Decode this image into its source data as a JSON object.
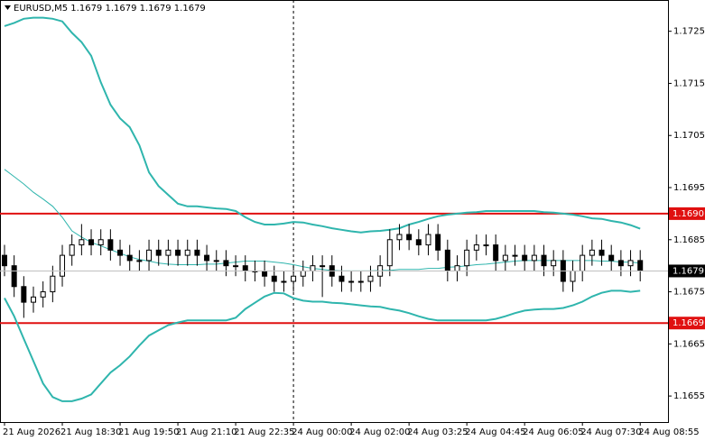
{
  "chart_data": {
    "type": "candlestick",
    "title": "EURUSD,M5  1.1679 1.1679 1.1679 1.1679",
    "categories": [
      "21 Aug 2026",
      null,
      null,
      null,
      null,
      null,
      "21 Aug 18:30",
      null,
      null,
      null,
      null,
      null,
      "21 Aug 19:50",
      null,
      null,
      null,
      null,
      null,
      "21 Aug 21:10",
      null,
      null,
      null,
      null,
      null,
      "21 Aug 22:35",
      null,
      null,
      null,
      null,
      null,
      "24 Aug 00:00",
      null,
      null,
      null,
      null,
      null,
      "24 Aug 02:00",
      null,
      null,
      null,
      null,
      null,
      "24 Aug 03:25",
      null,
      null,
      null,
      null,
      null,
      "24 Aug 04:45",
      null,
      null,
      null,
      null,
      null,
      "24 Aug 06:05",
      null,
      null,
      null,
      null,
      null,
      "24 Aug 07:30",
      null,
      null,
      null,
      null,
      null,
      "24 Aug 08:55"
    ],
    "open": [
      1.1682,
      1.168,
      1.1676,
      1.1673,
      1.1674,
      1.1675,
      1.1678,
      1.1682,
      1.1684,
      1.1685,
      1.1684,
      1.1685,
      1.1683,
      1.1682,
      1.1681,
      1.1681,
      1.1683,
      1.1682,
      1.1683,
      1.1682,
      1.1683,
      1.1682,
      1.1681,
      1.1681,
      1.168,
      1.168,
      1.1679,
      1.1679,
      1.1678,
      1.1677,
      1.1677,
      1.1678,
      1.1679,
      1.168,
      1.168,
      1.1678,
      1.1677,
      1.1677,
      1.1677,
      1.1678,
      1.168,
      1.1685,
      1.1686,
      1.1685,
      1.1684,
      1.1686,
      1.1683,
      1.1679,
      1.168,
      1.1683,
      1.1684,
      1.1684,
      1.1681,
      1.1682,
      1.1682,
      1.1681,
      1.1682,
      1.168,
      1.1681,
      1.1677,
      1.1679,
      1.1682,
      1.1683,
      1.1682,
      1.1681,
      1.168,
      1.1681
    ],
    "high": [
      1.1684,
      1.1682,
      1.1678,
      1.1676,
      1.1677,
      1.168,
      1.1684,
      1.1686,
      1.1688,
      1.1687,
      1.1687,
      1.1687,
      1.1685,
      1.1684,
      1.1683,
      1.1685,
      1.1685,
      1.1685,
      1.1685,
      1.1685,
      1.1685,
      1.1684,
      1.1683,
      1.1683,
      1.1682,
      1.1682,
      1.1681,
      1.1681,
      1.168,
      1.1679,
      1.168,
      1.1681,
      1.1682,
      1.1682,
      1.1682,
      1.168,
      1.1679,
      1.1679,
      1.168,
      1.1682,
      1.1687,
      1.1688,
      1.1688,
      1.1687,
      1.1688,
      1.1688,
      1.1685,
      1.1682,
      1.1685,
      1.1686,
      1.1686,
      1.1686,
      1.1684,
      1.1684,
      1.1684,
      1.1684,
      1.1684,
      1.1683,
      1.1683,
      1.1681,
      1.1684,
      1.1685,
      1.1685,
      1.1684,
      1.1683,
      1.1683,
      1.1683
    ],
    "low": [
      1.1678,
      1.1674,
      1.167,
      1.1671,
      1.1672,
      1.1673,
      1.1676,
      1.168,
      1.1682,
      1.1682,
      1.1682,
      1.1681,
      1.168,
      1.1679,
      1.1679,
      1.1679,
      1.168,
      1.168,
      1.168,
      1.168,
      1.168,
      1.1679,
      1.1679,
      1.1678,
      1.1678,
      1.1677,
      1.1677,
      1.1676,
      1.1675,
      1.1675,
      1.1675,
      1.1676,
      1.1677,
      1.1674,
      1.1676,
      1.1675,
      1.1675,
      1.1675,
      1.1675,
      1.1676,
      1.1678,
      1.1683,
      1.1683,
      1.1682,
      1.1682,
      1.1681,
      1.1677,
      1.1677,
      1.1678,
      1.1681,
      1.1682,
      1.1679,
      1.1679,
      1.168,
      1.1679,
      1.1679,
      1.1678,
      1.1678,
      1.1675,
      1.1675,
      1.1677,
      1.168,
      1.168,
      1.1679,
      1.1678,
      1.1678,
      1.1677
    ],
    "close": [
      1.168,
      1.1676,
      1.1673,
      1.1674,
      1.1675,
      1.1678,
      1.1682,
      1.1684,
      1.1685,
      1.1684,
      1.1685,
      1.1683,
      1.1682,
      1.1681,
      1.1681,
      1.1683,
      1.1682,
      1.1683,
      1.1682,
      1.1683,
      1.1682,
      1.1681,
      1.1681,
      1.168,
      1.168,
      1.1679,
      1.1679,
      1.1678,
      1.1677,
      1.1677,
      1.1678,
      1.1679,
      1.168,
      1.168,
      1.1678,
      1.1677,
      1.1677,
      1.1677,
      1.1678,
      1.168,
      1.1685,
      1.1686,
      1.1685,
      1.1684,
      1.1686,
      1.1683,
      1.1679,
      1.168,
      1.1683,
      1.1684,
      1.1684,
      1.1681,
      1.1682,
      1.1682,
      1.1681,
      1.1682,
      1.168,
      1.1681,
      1.1677,
      1.1679,
      1.1682,
      1.1683,
      1.1682,
      1.1681,
      1.168,
      1.1681,
      1.1679
    ],
    "candle_color": "#000000",
    "series": [
      {
        "color": "#2fb5ad",
        "width": 2,
        "values": [
          1.1726,
          1.17266,
          1.17274,
          1.17276,
          1.17276,
          1.17274,
          1.17269,
          1.17247,
          1.17229,
          1.17203,
          1.17152,
          1.17109,
          1.17083,
          1.17066,
          1.17031,
          1.16979,
          1.16953,
          1.16936,
          1.16919,
          1.16914,
          1.16914,
          1.16912,
          1.1691,
          1.16909,
          1.16905,
          1.16893,
          1.16884,
          1.16879,
          1.16879,
          1.16881,
          1.16884,
          1.16883,
          1.16879,
          1.16876,
          1.16872,
          1.16869,
          1.16866,
          1.16864,
          1.16866,
          1.16867,
          1.16869,
          1.16872,
          1.16879,
          1.16884,
          1.1689,
          1.16895,
          1.16898,
          1.169,
          1.16902,
          1.16903,
          1.16905,
          1.16905,
          1.16905,
          1.16905,
          1.16905,
          1.16905,
          1.16903,
          1.16902,
          1.169,
          1.16898,
          1.16895,
          1.16891,
          1.1689,
          1.16886,
          1.16883,
          1.16878,
          1.16871
        ]
      },
      {
        "color": "#2fb5ad",
        "width": 1,
        "values": [
          1.16985,
          1.16971,
          1.16957,
          1.16941,
          1.16928,
          1.16914,
          1.16893,
          1.16867,
          1.16855,
          1.16845,
          1.16838,
          1.16831,
          1.16824,
          1.16817,
          1.16812,
          1.16809,
          1.16805,
          1.16803,
          1.16802,
          1.16802,
          1.16802,
          1.16803,
          1.16803,
          1.16805,
          1.16807,
          1.16809,
          1.16809,
          1.16809,
          1.16807,
          1.16805,
          1.16802,
          1.16798,
          1.16795,
          1.16793,
          1.16791,
          1.1679,
          1.1679,
          1.1679,
          1.1679,
          1.16791,
          1.16791,
          1.16793,
          1.16793,
          1.16793,
          1.16795,
          1.16795,
          1.16797,
          1.16798,
          1.168,
          1.16802,
          1.16803,
          1.16805,
          1.16807,
          1.16809,
          1.1681,
          1.1681,
          1.1681,
          1.1681,
          1.1681,
          1.1681,
          1.1681,
          1.1681,
          1.16809,
          1.16809,
          1.16807,
          1.16807,
          1.16805
        ]
      },
      {
        "color": "#2fb5ad",
        "width": 2,
        "values": [
          1.16738,
          1.16703,
          1.1666,
          1.16617,
          1.16574,
          1.16548,
          1.1654,
          1.1654,
          1.16545,
          1.16553,
          1.16574,
          1.16595,
          1.16609,
          1.16626,
          1.16647,
          1.16666,
          1.16676,
          1.16686,
          1.16691,
          1.16695,
          1.16695,
          1.16695,
          1.16695,
          1.16695,
          1.167,
          1.16717,
          1.16729,
          1.16741,
          1.16748,
          1.16747,
          1.16738,
          1.16733,
          1.16731,
          1.16731,
          1.16729,
          1.16728,
          1.16726,
          1.16724,
          1.16722,
          1.16721,
          1.16717,
          1.16714,
          1.16709,
          1.16703,
          1.16698,
          1.16695,
          1.16695,
          1.16695,
          1.16695,
          1.16695,
          1.16695,
          1.16698,
          1.16703,
          1.16709,
          1.16714,
          1.16716,
          1.16717,
          1.16717,
          1.16719,
          1.16724,
          1.16731,
          1.16741,
          1.16748,
          1.16752,
          1.16752,
          1.1675,
          1.16752
        ]
      }
    ],
    "hlines": [
      {
        "value": 1.169,
        "label": "1.1690",
        "color": "#e01010"
      },
      {
        "value": 1.1669,
        "label": "1.1669",
        "color": "#e01010"
      }
    ],
    "current_price": 1.1679,
    "marker_category": 30,
    "ylim": [
      1.165,
      1.1731
    ],
    "yticks": [
      1.1655,
      1.1665,
      1.1675,
      1.1685,
      1.1695,
      1.1705,
      1.1715,
      1.1725
    ],
    "grid": false
  }
}
